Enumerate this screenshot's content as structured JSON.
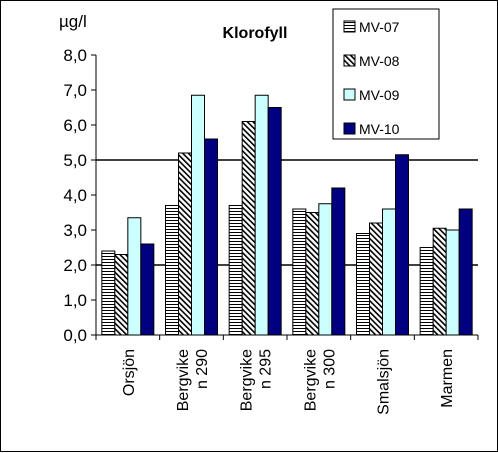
{
  "chart_data": {
    "type": "bar",
    "title": "Klorofyll",
    "ylabel": "µg/l",
    "xlabel": "",
    "ylim": [
      0,
      8
    ],
    "yticks": [
      "0,0",
      "1,0",
      "2,0",
      "3,0",
      "4,0",
      "5,0",
      "6,0",
      "7,0",
      "8,0"
    ],
    "reference_lines": [
      2.0,
      5.0
    ],
    "grid": false,
    "legend_position": "top-right",
    "categories": [
      [
        "Orsjön"
      ],
      [
        "Bergvike",
        "n 290"
      ],
      [
        "Bergvike",
        "n 295"
      ],
      [
        "Bergvike",
        "n 300"
      ],
      [
        "Smalsjön"
      ],
      [
        "Marmen"
      ]
    ],
    "series": [
      {
        "name": "MV-07",
        "pattern": "horizontal-stripes",
        "color": "#ffffff",
        "values": [
          2.4,
          3.7,
          3.7,
          3.6,
          2.9,
          2.5
        ]
      },
      {
        "name": "MV-08",
        "pattern": "diagonal-stripes",
        "color": "#ffffff",
        "values": [
          2.3,
          5.2,
          6.1,
          3.5,
          3.2,
          3.05
        ]
      },
      {
        "name": "MV-09",
        "pattern": "solid",
        "color": "#ccffff",
        "values": [
          3.35,
          6.85,
          6.85,
          3.75,
          3.6,
          3.0
        ]
      },
      {
        "name": "MV-10",
        "pattern": "solid",
        "color": "#000080",
        "values": [
          2.6,
          5.6,
          6.5,
          4.2,
          5.15,
          3.6
        ]
      }
    ]
  }
}
